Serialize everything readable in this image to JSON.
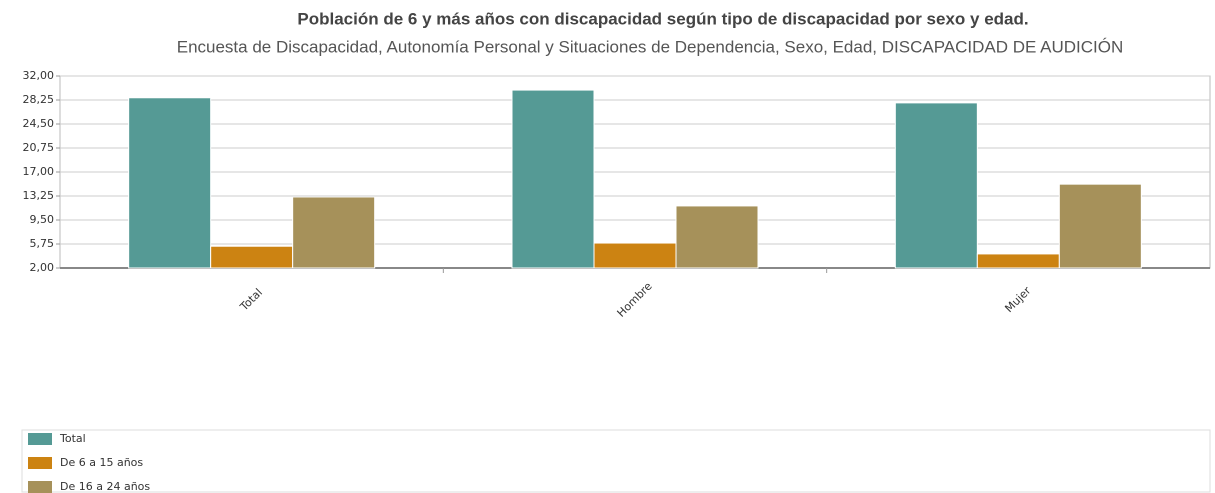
{
  "chart_data": {
    "type": "bar",
    "title": "Población de 6 y más años con discapacidad según tipo de discapacidad por sexo y edad.",
    "subtitle": "Encuesta de Discapacidad, Autonomía Personal y Situaciones de Dependencia, Sexo, Edad, DISCAPACIDAD DE AUDICIÓN",
    "categories": [
      "Total",
      "Hombre",
      "Mujer"
    ],
    "series": [
      {
        "name": "Total",
        "color": "#559a95",
        "values": [
          28.6,
          29.8,
          27.8
        ]
      },
      {
        "name": "De 6 a 15 años",
        "color": "#cc8312",
        "values": [
          5.4,
          5.9,
          4.2
        ]
      },
      {
        "name": "De 16 a 24 años",
        "color": "#a6915a",
        "values": [
          13.1,
          11.7,
          15.1
        ]
      }
    ],
    "ylim": [
      2,
      32
    ],
    "yticks": [
      {
        "value": 2,
        "label": "2,00"
      },
      {
        "value": 5.75,
        "label": "5,75"
      },
      {
        "value": 9.5,
        "label": "9,50"
      },
      {
        "value": 13.25,
        "label": "13,25"
      },
      {
        "value": 17,
        "label": "17,00"
      },
      {
        "value": 20.75,
        "label": "20,75"
      },
      {
        "value": 24.5,
        "label": "24,50"
      },
      {
        "value": 28.25,
        "label": "28,25"
      },
      {
        "value": 32,
        "label": "32,00"
      }
    ],
    "grid": true
  }
}
